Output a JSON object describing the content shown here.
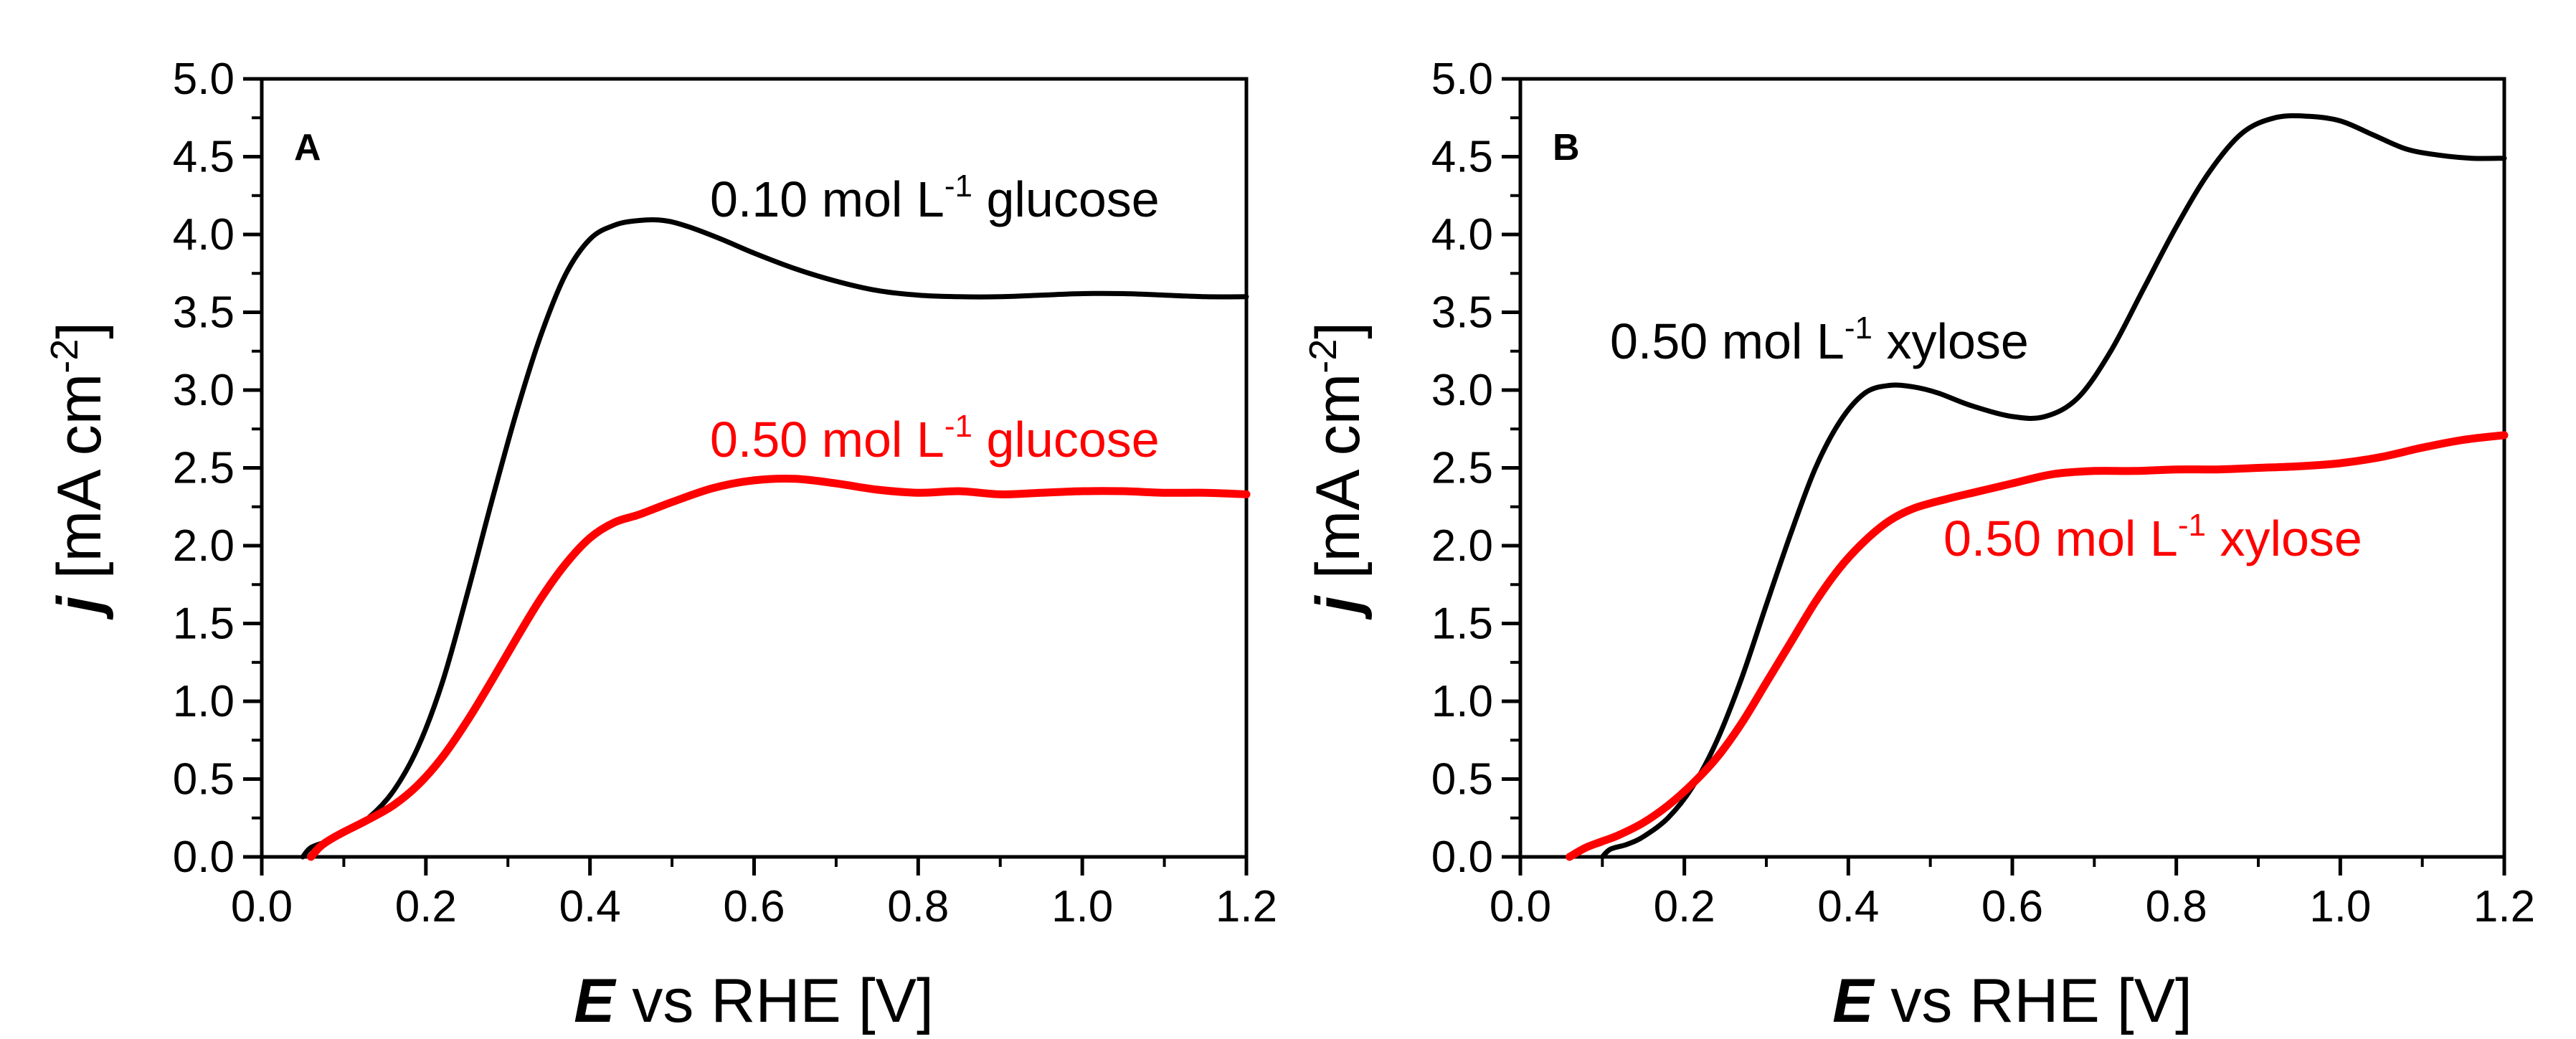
{
  "chart_data": [
    {
      "type": "line",
      "panel_label": "A",
      "xlabel_italic": "E",
      "xlabel_rest": " vs RHE [V]",
      "ylabel_italic": "j",
      "ylabel_rest": " [mA cm",
      "ylabel_sup": "-2",
      "ylabel_close": "]",
      "xlim": [
        0.0,
        1.2
      ],
      "ylim": [
        0.0,
        5.0
      ],
      "xticks": [
        "0.0",
        "0.2",
        "0.4",
        "0.6",
        "0.8",
        "1.0",
        "1.2"
      ],
      "yticks": [
        "0.0",
        "0.5",
        "1.0",
        "1.5",
        "2.0",
        "2.5",
        "3.0",
        "3.5",
        "4.0",
        "4.5",
        "5.0"
      ],
      "series": [
        {
          "name": "0.10 mol L-1 glucose",
          "color": "#000000",
          "label_pre": "0.10 mol L",
          "label_sup": "-1",
          "label_post": " glucose",
          "x": [
            0.05,
            0.06,
            0.08,
            0.1,
            0.13,
            0.16,
            0.19,
            0.22,
            0.25,
            0.28,
            0.31,
            0.34,
            0.37,
            0.4,
            0.43,
            0.46,
            0.49,
            0.52,
            0.56,
            0.6,
            0.65,
            0.7,
            0.75,
            0.8,
            0.85,
            0.9,
            0.95,
            1.0,
            1.05,
            1.1,
            1.15,
            1.2
          ],
          "y": [
            0.0,
            0.06,
            0.1,
            0.15,
            0.25,
            0.42,
            0.7,
            1.12,
            1.68,
            2.28,
            2.85,
            3.35,
            3.74,
            3.97,
            4.06,
            4.09,
            4.09,
            4.05,
            3.97,
            3.88,
            3.78,
            3.7,
            3.64,
            3.61,
            3.6,
            3.6,
            3.61,
            3.62,
            3.62,
            3.61,
            3.6,
            3.6
          ]
        },
        {
          "name": "0.50 mol L-1 glucose",
          "color": "#ff0000",
          "label_pre": "0.50 mol L",
          "label_sup": "-1",
          "label_post": " glucose",
          "x": [
            0.06,
            0.07,
            0.08,
            0.1,
            0.13,
            0.16,
            0.19,
            0.22,
            0.25,
            0.28,
            0.31,
            0.34,
            0.37,
            0.4,
            0.43,
            0.46,
            0.5,
            0.55,
            0.6,
            0.65,
            0.7,
            0.75,
            0.8,
            0.85,
            0.9,
            0.95,
            1.0,
            1.05,
            1.1,
            1.15,
            1.2
          ],
          "y": [
            0.0,
            0.06,
            0.1,
            0.16,
            0.24,
            0.33,
            0.46,
            0.64,
            0.87,
            1.13,
            1.4,
            1.66,
            1.88,
            2.05,
            2.15,
            2.2,
            2.28,
            2.37,
            2.42,
            2.43,
            2.4,
            2.36,
            2.34,
            2.35,
            2.33,
            2.34,
            2.35,
            2.35,
            2.34,
            2.34,
            2.33
          ]
        }
      ]
    },
    {
      "type": "line",
      "panel_label": "B",
      "xlabel_italic": "E",
      "xlabel_rest": " vs RHE [V]",
      "ylabel_italic": "j",
      "ylabel_rest": " [mA cm",
      "ylabel_sup": "-2",
      "ylabel_close": "]",
      "xlim": [
        0.0,
        1.2
      ],
      "ylim": [
        0.0,
        5.0
      ],
      "xticks": [
        "0.0",
        "0.2",
        "0.4",
        "0.6",
        "0.8",
        "1.0",
        "1.2"
      ],
      "yticks": [
        "0.0",
        "0.5",
        "1.0",
        "1.5",
        "2.0",
        "2.5",
        "3.0",
        "3.5",
        "4.0",
        "4.5",
        "5.0"
      ],
      "series": [
        {
          "name": "0.50 mol L-1 xylose",
          "color": "#000000",
          "label_pre": "0.50 mol L",
          "label_sup": "-1",
          "label_post": " xylose",
          "x": [
            0.1,
            0.11,
            0.13,
            0.15,
            0.18,
            0.21,
            0.24,
            0.27,
            0.3,
            0.33,
            0.36,
            0.39,
            0.42,
            0.45,
            0.48,
            0.51,
            0.55,
            0.6,
            0.64,
            0.68,
            0.72,
            0.76,
            0.8,
            0.84,
            0.88,
            0.92,
            0.96,
            1.0,
            1.04,
            1.08,
            1.12,
            1.16,
            1.2
          ],
          "y": [
            0.0,
            0.05,
            0.08,
            0.13,
            0.25,
            0.45,
            0.75,
            1.15,
            1.62,
            2.08,
            2.5,
            2.8,
            2.98,
            3.03,
            3.02,
            2.98,
            2.9,
            2.83,
            2.83,
            2.95,
            3.25,
            3.65,
            4.05,
            4.4,
            4.65,
            4.75,
            4.76,
            4.73,
            4.64,
            4.55,
            4.51,
            4.49,
            4.49
          ]
        },
        {
          "name": "0.50 mol L-1 xylose",
          "color": "#ff0000",
          "label_pre": "0.50 mol L",
          "label_sup": "-1",
          "label_post": " xylose",
          "x": [
            0.06,
            0.08,
            0.1,
            0.12,
            0.15,
            0.18,
            0.21,
            0.24,
            0.27,
            0.3,
            0.33,
            0.36,
            0.39,
            0.42,
            0.45,
            0.48,
            0.52,
            0.56,
            0.6,
            0.65,
            0.7,
            0.75,
            0.8,
            0.85,
            0.9,
            0.95,
            1.0,
            1.05,
            1.1,
            1.15,
            1.2
          ],
          "y": [
            0.0,
            0.06,
            0.1,
            0.14,
            0.22,
            0.33,
            0.47,
            0.64,
            0.86,
            1.12,
            1.38,
            1.64,
            1.86,
            2.03,
            2.16,
            2.24,
            2.3,
            2.35,
            2.4,
            2.46,
            2.48,
            2.48,
            2.49,
            2.49,
            2.5,
            2.51,
            2.53,
            2.57,
            2.63,
            2.68,
            2.71
          ]
        }
      ]
    }
  ]
}
